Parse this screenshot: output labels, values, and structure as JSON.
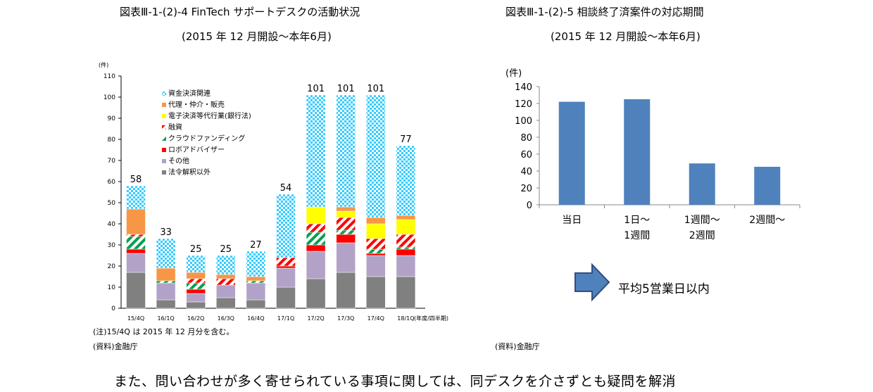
{
  "left_figure": {
    "title": "図表Ⅲ-1-(2)-4  FinTech サポートデスクの活動状況",
    "subtitle": "(2015 年 12 月開設～本年6月)",
    "note": "(注)15/4Q は 2015 年 12 月分を含む。",
    "source": "(資料)金融庁"
  },
  "right_figure": {
    "title": "図表Ⅲ-1-(2)-5  相談終了済案件の対応期間",
    "subtitle": "(2015 年 12 月開設～本年6月)",
    "source": "(資料)金融庁",
    "arrow_text": "平均5営業日以内"
  },
  "body_text": "また、問い合わせが多く寄せられている事項に関しては、同デスクを介さずとも疑問を解消",
  "chart_data": [
    {
      "type": "bar",
      "stacked": true,
      "ylabel": "(件)",
      "xlabel": "(年度/四半期)",
      "ylim": [
        0,
        110
      ],
      "yticks": [
        0,
        10,
        20,
        30,
        40,
        50,
        60,
        70,
        80,
        90,
        100,
        110
      ],
      "categories": [
        "15/4Q",
        "16/1Q",
        "16/2Q",
        "16/3Q",
        "16/4Q",
        "17/1Q",
        "17/2Q",
        "17/3Q",
        "17/4Q",
        "18/1Q"
      ],
      "totals": [
        58,
        33,
        25,
        25,
        27,
        54,
        101,
        101,
        101,
        77
      ],
      "legend_position": "top-left",
      "series": [
        {
          "name": "法令解釈以外",
          "color": "#808080",
          "pattern": "solid",
          "values": [
            17,
            4,
            3,
            5,
            4,
            10,
            14,
            17,
            15,
            15
          ]
        },
        {
          "name": "その他",
          "color": "#b3a2c7",
          "pattern": "solid",
          "values": [
            9,
            8,
            4,
            6,
            8,
            9,
            13,
            14,
            10,
            10
          ]
        },
        {
          "name": "ロボアドバイザー",
          "color": "#ff0000",
          "pattern": "solid",
          "values": [
            2,
            0,
            2,
            0,
            0,
            1,
            3,
            4,
            1,
            3
          ]
        },
        {
          "name": "クラウドファンディング",
          "color": "#00a050",
          "pattern": "diagonal-stripes",
          "values": [
            6,
            1,
            3,
            0,
            1,
            0,
            6,
            2,
            2,
            1
          ]
        },
        {
          "name": "融資",
          "color": "#ff0000",
          "pattern": "diagonal-stripes",
          "values": [
            1,
            0,
            2,
            3,
            0,
            4,
            4,
            6,
            5,
            6
          ]
        },
        {
          "name": "電子決済等代行業(銀行法)",
          "color": "#ffff00",
          "pattern": "solid",
          "values": [
            0,
            0,
            0,
            0,
            0,
            0,
            8,
            3,
            7,
            7
          ]
        },
        {
          "name": "代理・仲介・販売",
          "color": "#f79646",
          "pattern": "solid",
          "values": [
            12,
            6,
            3,
            2,
            2,
            0,
            0,
            2,
            3,
            2
          ]
        },
        {
          "name": "資金決済関連",
          "color": "#33ccff",
          "pattern": "checker",
          "values": [
            11,
            14,
            8,
            9,
            12,
            30,
            53,
            53,
            58,
            33
          ]
        }
      ]
    },
    {
      "type": "bar",
      "ylabel": "(件)",
      "ylim": [
        0,
        140
      ],
      "yticks": [
        0,
        20,
        40,
        60,
        80,
        100,
        120,
        140
      ],
      "categories": [
        [
          "当日"
        ],
        [
          "1日～",
          "1週間"
        ],
        [
          "1週間～",
          "2週間"
        ],
        [
          "2週間～"
        ]
      ],
      "values": [
        122,
        125,
        49,
        45
      ],
      "color": "#4f81bd"
    }
  ]
}
